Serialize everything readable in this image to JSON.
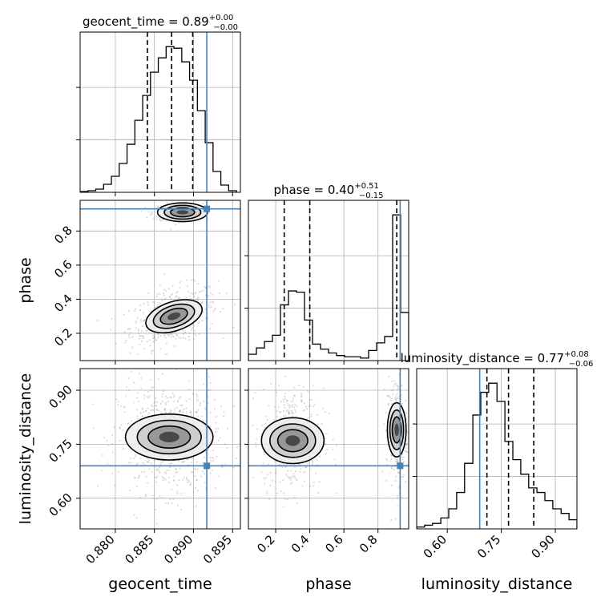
{
  "chart_data": {
    "type": "corner",
    "parameters": [
      "geocent_time",
      "phase",
      "luminosity_distance"
    ],
    "truth_color": "#4682b4",
    "panels": {
      "geocent_time": {
        "title_main": "geocent_time = 0.89",
        "title_sup": "+0.00",
        "title_sub": "−0.00",
        "xlim": [
          0.8755,
          0.896
        ],
        "ticks": [
          0.88,
          0.885,
          0.89,
          0.895
        ],
        "tick_labels": [
          "0.880",
          "0.885",
          "0.890",
          "0.895"
        ],
        "xlabel": "geocent_time",
        "truth": 0.8917,
        "quantiles": [
          0.8841,
          0.8872,
          0.8899
        ],
        "hist_edges": [
          0.8755,
          0.8765,
          0.8775,
          0.8785,
          0.8795,
          0.8805,
          0.8815,
          0.8825,
          0.8835,
          0.8845,
          0.8855,
          0.8865,
          0.8875,
          0.8885,
          0.8895,
          0.8905,
          0.8915,
          0.8925,
          0.8935,
          0.8945,
          0.8955
        ],
        "hist_values": [
          1,
          2,
          4,
          10,
          20,
          36,
          60,
          90,
          121,
          150,
          168,
          182,
          180,
          163,
          140,
          102,
          62,
          26,
          9,
          2
        ]
      },
      "phase": {
        "title_main": "phase = 0.40",
        "title_sup": "+0.51",
        "title_sub": "−0.15",
        "xlim": [
          0.04,
          0.98
        ],
        "ticks": [
          0.2,
          0.4,
          0.6,
          0.8
        ],
        "tick_labels": [
          "0.2",
          "0.4",
          "0.6",
          "0.8"
        ],
        "ylim": [
          0.04,
          0.98
        ],
        "ytick_labels": [
          "0.2",
          "0.4",
          "0.6",
          "0.8"
        ],
        "xlabel": "phase",
        "ylabel": "phase",
        "truth": 0.93,
        "quantiles": [
          0.25,
          0.4,
          0.91
        ],
        "hist_edges": [
          0.04,
          0.087,
          0.134,
          0.181,
          0.228,
          0.275,
          0.322,
          0.369,
          0.416,
          0.463,
          0.51,
          0.557,
          0.604,
          0.651,
          0.698,
          0.745,
          0.792,
          0.839,
          0.886,
          0.933,
          0.98
        ],
        "hist_values": [
          5,
          10,
          15,
          20,
          44,
          55,
          54,
          32,
          13,
          9,
          6,
          4,
          3,
          3,
          2,
          8,
          14,
          19,
          115,
          38
        ]
      },
      "luminosity_distance": {
        "title_main": "luminosity_distance = 0.77",
        "title_sup": "+0.08",
        "title_sub": "−0.06",
        "xlim": [
          0.515,
          0.96
        ],
        "ticks": [
          0.6,
          0.75,
          0.9
        ],
        "tick_labels": [
          "0.60",
          "0.75",
          "0.90"
        ],
        "ylim": [
          0.515,
          0.96
        ],
        "ytick_labels": [
          "0.60",
          "0.75",
          "0.90"
        ],
        "xlabel": "luminosity_distance",
        "ylabel": "luminosity_distance",
        "truth": 0.69,
        "quantiles": [
          0.71,
          0.77,
          0.84
        ],
        "hist_edges": [
          0.515,
          0.537,
          0.559,
          0.582,
          0.604,
          0.626,
          0.648,
          0.671,
          0.693,
          0.715,
          0.738,
          0.76,
          0.782,
          0.804,
          0.826,
          0.849,
          0.871,
          0.893,
          0.916,
          0.938,
          0.96
        ],
        "hist_values": [
          2,
          4,
          6,
          12,
          22,
          40,
          72,
          125,
          150,
          160,
          140,
          96,
          76,
          60,
          45,
          40,
          31,
          22,
          17,
          10
        ]
      }
    }
  }
}
